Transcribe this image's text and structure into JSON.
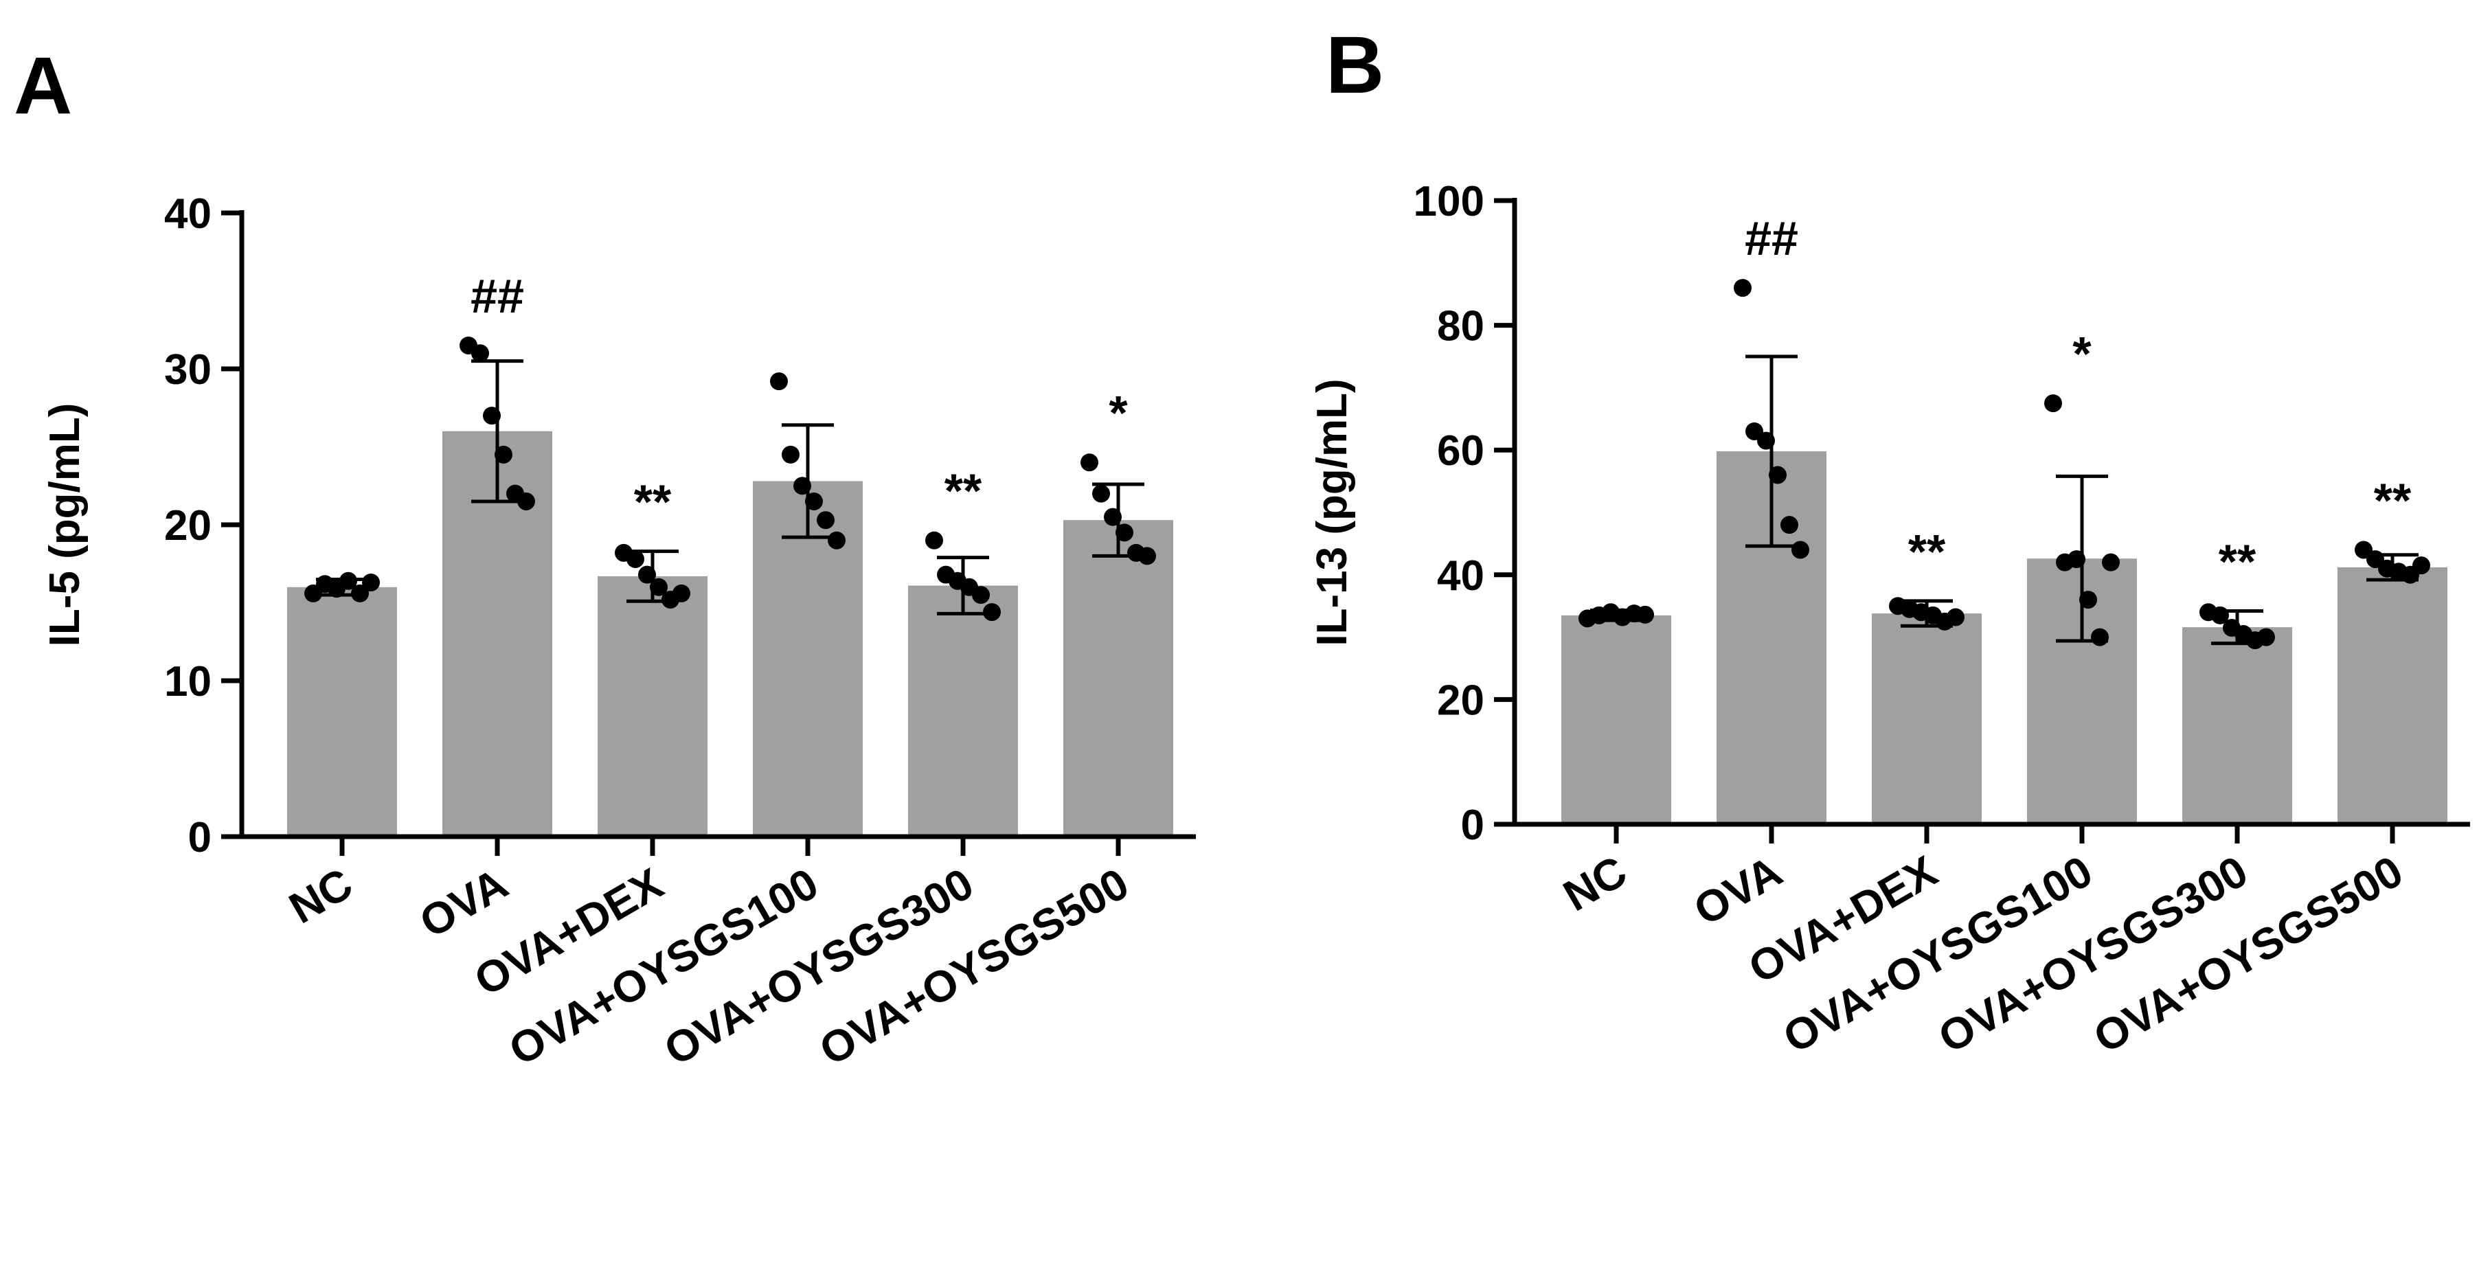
{
  "chart_data": [
    {
      "type": "bar",
      "panel": "A",
      "title": "",
      "xlabel": "",
      "ylabel": "IL-5 (pg/mL)",
      "ylim": [
        0,
        40
      ],
      "yticks": [
        0,
        10,
        20,
        30,
        40
      ],
      "categories": [
        "NC",
        "OVA",
        "OVA+DEX",
        "OVA+OYSGS100",
        "OVA+OYSGS300",
        "OVA+OYSGS500"
      ],
      "values": [
        16.0,
        26.0,
        16.7,
        22.8,
        16.1,
        20.3
      ],
      "sd": [
        0.5,
        4.5,
        1.6,
        3.6,
        1.8,
        2.3
      ],
      "points": [
        [
          15.6,
          16.2,
          15.9,
          16.4,
          15.6,
          16.3
        ],
        [
          31.5,
          31.0,
          27.0,
          24.5,
          22.0,
          21.5
        ],
        [
          18.2,
          17.8,
          16.8,
          16.0,
          15.2,
          15.6
        ],
        [
          29.2,
          24.5,
          22.5,
          21.5,
          20.3,
          19.0
        ],
        [
          19.0,
          16.8,
          16.4,
          16.0,
          15.5,
          14.4
        ],
        [
          24.0,
          22.0,
          20.5,
          19.5,
          18.2,
          18.0
        ]
      ],
      "significance": [
        "",
        "##",
        "**",
        "",
        "**",
        "*"
      ]
    },
    {
      "type": "bar",
      "panel": "B",
      "title": "",
      "xlabel": "",
      "ylabel": "IL-13 (pg/mL)",
      "ylim": [
        0,
        100
      ],
      "yticks": [
        0,
        20,
        40,
        60,
        80,
        100
      ],
      "categories": [
        "NC",
        "OVA",
        "OVA+DEX",
        "OVA+OYSGS100",
        "OVA+OYSGS300",
        "OVA+OYSGS500"
      ],
      "values": [
        33.5,
        59.8,
        33.8,
        42.6,
        31.6,
        41.2
      ],
      "sd": [
        0.8,
        15.2,
        2.0,
        13.2,
        2.6,
        2.0
      ],
      "points": [
        [
          33.0,
          33.5,
          34.0,
          33.2,
          33.8,
          33.6
        ],
        [
          86.0,
          63.0,
          61.5,
          56.0,
          48.0,
          44.0
        ],
        [
          35.0,
          34.5,
          34.0,
          33.5,
          32.5,
          33.2
        ],
        [
          67.5,
          42.0,
          42.5,
          36.0,
          30.0,
          42.0
        ],
        [
          34.0,
          33.5,
          31.5,
          30.5,
          29.5,
          30.0
        ],
        [
          44.0,
          42.5,
          41.0,
          40.5,
          40.0,
          41.5
        ]
      ],
      "significance": [
        "",
        "##",
        "**",
        "*",
        "**",
        "**"
      ]
    }
  ]
}
